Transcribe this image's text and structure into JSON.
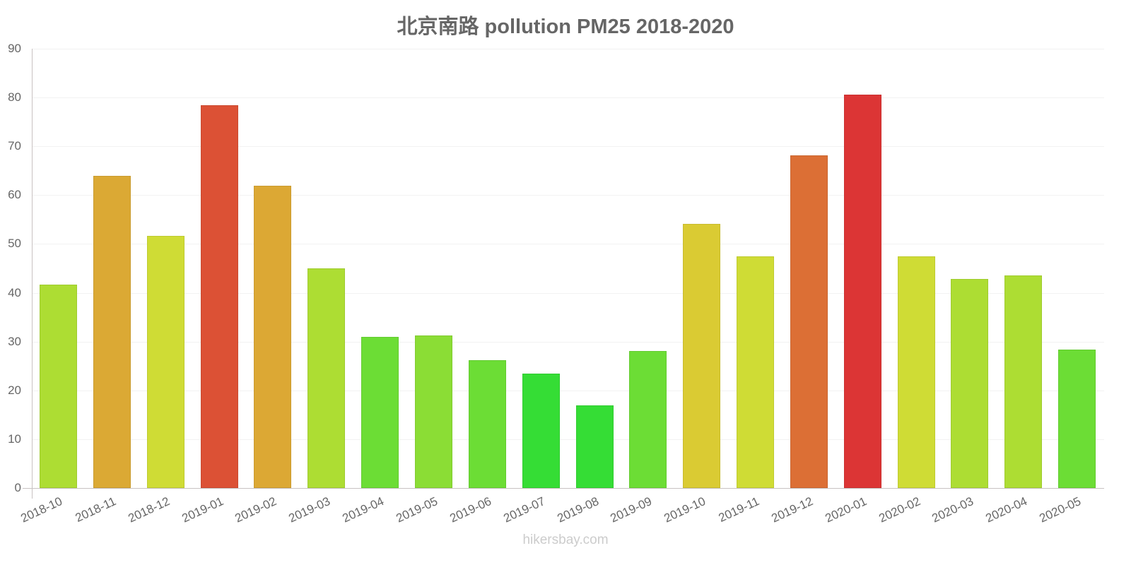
{
  "chart_data": {
    "type": "bar",
    "title": "北京南路 pollution PM25 2018-2020",
    "xlabel": "",
    "ylabel": "",
    "ylim": [
      0,
      90
    ],
    "yticks": [
      0,
      10,
      20,
      30,
      40,
      50,
      60,
      70,
      80,
      90
    ],
    "grid": true,
    "legend": null,
    "categories": [
      "2018-10",
      "2018-11",
      "2018-12",
      "2019-01",
      "2019-02",
      "2019-03",
      "2019-04",
      "2019-05",
      "2019-06",
      "2019-07",
      "2019-08",
      "2019-09",
      "2019-10",
      "2019-11",
      "2019-12",
      "2020-01",
      "2020-02",
      "2020-03",
      "2020-04",
      "2020-05"
    ],
    "values": [
      41.7,
      63.9,
      51.7,
      78.4,
      61.9,
      45.0,
      31.0,
      31.3,
      26.2,
      23.4,
      16.9,
      28.1,
      54.1,
      47.4,
      68.2,
      80.6,
      47.5,
      42.9,
      43.6,
      28.4
    ],
    "colors": [
      "#addd33",
      "#dba934",
      "#cfdc35",
      "#dc5135",
      "#dca834",
      "#addd33",
      "#6cdd35",
      "#8bdd35",
      "#6cdd35",
      "#35dd35",
      "#35dd35",
      "#6cdd35",
      "#dacb33",
      "#cfdc35",
      "#dc6f35",
      "#dc3535",
      "#cfdc35",
      "#addd33",
      "#addd33",
      "#6cdd35"
    ]
  },
  "watermark": "hikersbay.com"
}
